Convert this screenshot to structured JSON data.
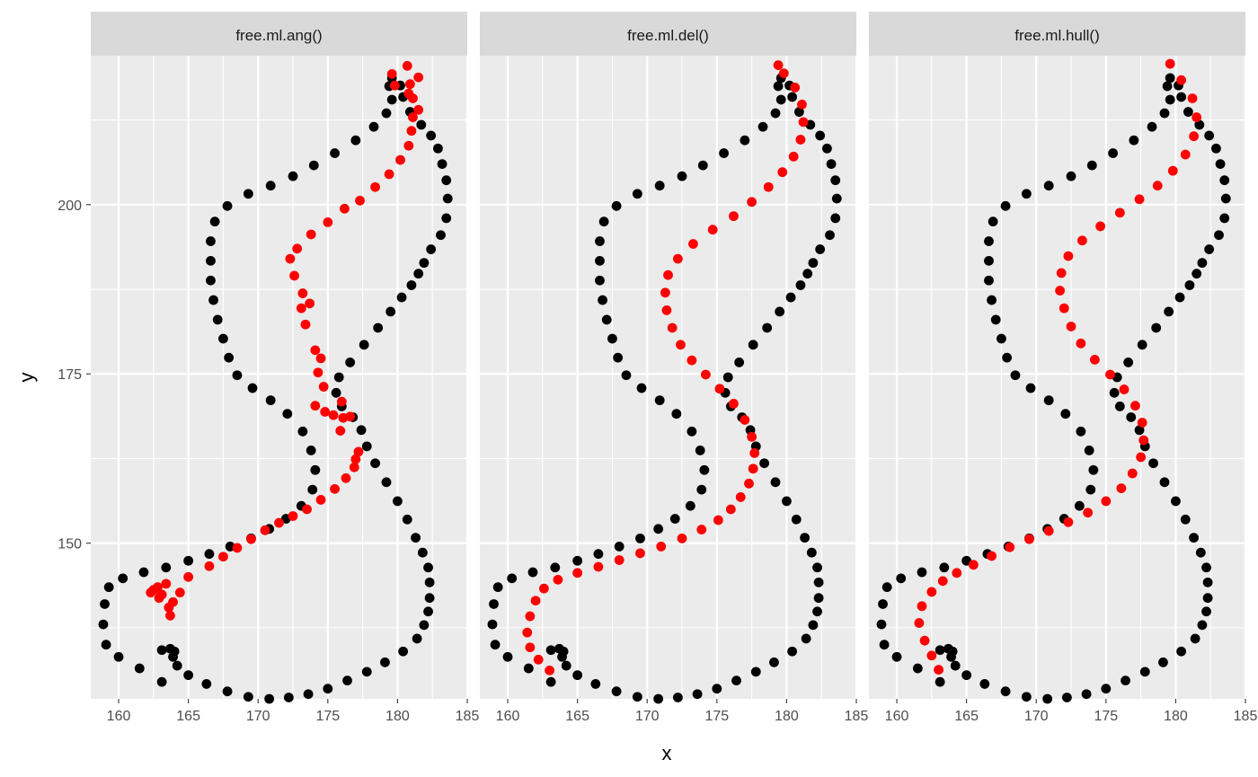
{
  "colors": {
    "panel_background": "#EBEBEB",
    "strip_background": "#D9D9D9",
    "grid": "#FFFFFF",
    "outline_points": "#000000",
    "midline_points": "#FF0000",
    "tick_text": "#4D4D4D"
  },
  "chart_data": [
    {
      "type": "scatter",
      "facet": "free.ml.ang()",
      "x_axis_label": "x",
      "y_axis_label": "y",
      "xlim": [
        158,
        185
      ],
      "ylim": [
        222,
        127
      ],
      "y_reversed": true,
      "x_ticks": [
        160,
        165,
        170,
        175,
        180,
        185
      ],
      "y_ticks": [
        150,
        175,
        200
      ],
      "grid": true,
      "series": [
        {
          "color": "#000000",
          "x": [
            163.1,
            161.5,
            160.0,
            159.1,
            158.9,
            159.0,
            159.3,
            160.3,
            161.8,
            163.4,
            165.0,
            166.5,
            168.0,
            169.5,
            170.8,
            172.0,
            173.1,
            173.9,
            174.1,
            173.8,
            173.2,
            172.1,
            170.9,
            169.6,
            168.5,
            167.9,
            167.5,
            167.1,
            166.8,
            166.6,
            166.6,
            166.6,
            166.9,
            167.8,
            169.3,
            170.9,
            172.5,
            174.0,
            175.5,
            177.0,
            178.3,
            179.2,
            179.6,
            179.4,
            179.6,
            180.2,
            180.4,
            180.9,
            181.7,
            182.4,
            182.9,
            183.2,
            183.5,
            183.6,
            183.5,
            183.1,
            182.4,
            181.9,
            181.5,
            181.0,
            180.3,
            179.5,
            178.6,
            177.6,
            176.6,
            175.8,
            175.6,
            176.0,
            176.8,
            177.4,
            177.8,
            178.4,
            179.2,
            180.0,
            180.7,
            181.3,
            181.8,
            182.2,
            182.3,
            182.3,
            182.2,
            181.9,
            181.4,
            180.4,
            179.1,
            177.8,
            176.4,
            175.0,
            173.6,
            172.2,
            170.8,
            169.3,
            167.8,
            166.3,
            165.0,
            164.2,
            163.9,
            164.0,
            163.7,
            163.1
          ],
          "y": [
            129.5,
            131.5,
            133.2,
            135.0,
            138.0,
            141.0,
            143.5,
            144.8,
            145.7,
            146.4,
            147.4,
            148.4,
            149.5,
            150.7,
            152.1,
            153.6,
            155.5,
            157.9,
            160.8,
            163.7,
            166.5,
            169.1,
            171.1,
            172.9,
            174.8,
            177.4,
            180.2,
            183.0,
            185.9,
            188.8,
            191.7,
            194.6,
            197.5,
            199.8,
            201.6,
            202.8,
            204.2,
            205.8,
            207.6,
            209.5,
            211.5,
            213.5,
            215.5,
            217.5,
            218.7,
            217.6,
            215.9,
            213.7,
            211.8,
            210.2,
            208.3,
            206.0,
            203.6,
            200.9,
            198.0,
            195.5,
            193.4,
            191.4,
            189.8,
            188.1,
            186.3,
            184.2,
            181.8,
            179.3,
            176.7,
            174.5,
            172.2,
            170.2,
            168.6,
            166.7,
            164.3,
            161.8,
            159.0,
            156.2,
            153.5,
            150.8,
            148.6,
            146.4,
            144.2,
            141.9,
            139.9,
            137.9,
            135.9,
            134.0,
            132.4,
            131.0,
            129.7,
            128.5,
            127.7,
            127.2,
            127.0,
            127.3,
            128.1,
            129.2,
            130.5,
            131.9,
            133.2,
            134.0,
            134.4,
            134.2
          ]
        },
        {
          "color": "#FF0000",
          "x": [
            163.7,
            163.6,
            162.9,
            162.5,
            163.1,
            163.9,
            164.4,
            162.3,
            162.8,
            163.4,
            165.0,
            166.5,
            167.5,
            168.5,
            169.5,
            170.5,
            171.5,
            172.5,
            173.5,
            174.5,
            175.5,
            176.3,
            176.9,
            177.0,
            177.2,
            175.9,
            176.1,
            175.4,
            174.8,
            174.1,
            176.6,
            176.0,
            174.7,
            174.3,
            174.5,
            174.1,
            173.4,
            173.1,
            173.7,
            173.2,
            172.6,
            172.3,
            172.8,
            173.8,
            175.0,
            176.2,
            177.3,
            178.4,
            179.4,
            180.2,
            180.8,
            181.0,
            181.1,
            181.5,
            181.1,
            180.8,
            180.9,
            181.5,
            179.8,
            179.6,
            180.7
          ],
          "y": [
            139.3,
            140.5,
            141.9,
            143.1,
            142.4,
            141.3,
            142.7,
            142.7,
            143.5,
            144.0,
            145.0,
            146.6,
            148.0,
            149.3,
            150.6,
            151.9,
            153.0,
            154.0,
            155.0,
            156.4,
            158.0,
            159.6,
            161.2,
            162.4,
            163.5,
            166.6,
            168.5,
            168.9,
            169.4,
            170.3,
            168.7,
            170.9,
            173.1,
            175.2,
            177.3,
            178.5,
            182.3,
            184.7,
            185.4,
            186.9,
            189.5,
            192.0,
            193.5,
            195.6,
            197.4,
            199.4,
            200.6,
            202.6,
            204.5,
            206.6,
            208.7,
            210.9,
            212.9,
            214.0,
            215.7,
            216.4,
            217.8,
            218.8,
            217.6,
            219.3,
            220.5
          ]
        }
      ]
    },
    {
      "type": "scatter",
      "facet": "free.ml.del()",
      "x_axis_label": "x",
      "y_axis_label": "y",
      "xlim": [
        158,
        185
      ],
      "ylim": [
        222,
        127
      ],
      "y_reversed": true,
      "x_ticks": [
        160,
        165,
        170,
        175,
        180,
        185
      ],
      "y_ticks": [
        150,
        175,
        200
      ],
      "grid": true,
      "series": [
        {
          "color": "#000000",
          "x": [
            163.1,
            161.5,
            160.0,
            159.1,
            158.9,
            159.0,
            159.3,
            160.3,
            161.8,
            163.4,
            165.0,
            166.5,
            168.0,
            169.5,
            170.8,
            172.0,
            173.1,
            173.9,
            174.1,
            173.8,
            173.2,
            172.1,
            170.9,
            169.6,
            168.5,
            167.9,
            167.5,
            167.1,
            166.8,
            166.6,
            166.6,
            166.6,
            166.9,
            167.8,
            169.3,
            170.9,
            172.5,
            174.0,
            175.5,
            177.0,
            178.3,
            179.2,
            179.6,
            179.4,
            179.6,
            180.2,
            180.4,
            180.9,
            181.7,
            182.4,
            182.9,
            183.2,
            183.5,
            183.6,
            183.5,
            183.1,
            182.4,
            181.9,
            181.5,
            181.0,
            180.3,
            179.5,
            178.6,
            177.6,
            176.6,
            175.8,
            175.6,
            176.0,
            176.8,
            177.4,
            177.8,
            178.4,
            179.2,
            180.0,
            180.7,
            181.3,
            181.8,
            182.2,
            182.3,
            182.3,
            182.2,
            181.9,
            181.4,
            180.4,
            179.1,
            177.8,
            176.4,
            175.0,
            173.6,
            172.2,
            170.8,
            169.3,
            167.8,
            166.3,
            165.0,
            164.2,
            163.9,
            164.0,
            163.7,
            163.1
          ],
          "y": [
            129.5,
            131.5,
            133.2,
            135.0,
            138.0,
            141.0,
            143.5,
            144.8,
            145.7,
            146.4,
            147.4,
            148.4,
            149.5,
            150.7,
            152.1,
            153.6,
            155.5,
            157.9,
            160.8,
            163.7,
            166.5,
            169.1,
            171.1,
            172.9,
            174.8,
            177.4,
            180.2,
            183.0,
            185.9,
            188.8,
            191.7,
            194.6,
            197.5,
            199.8,
            201.6,
            202.8,
            204.2,
            205.8,
            207.6,
            209.5,
            211.5,
            213.5,
            215.5,
            217.5,
            218.7,
            217.6,
            215.9,
            213.7,
            211.8,
            210.2,
            208.3,
            206.0,
            203.6,
            200.9,
            198.0,
            195.5,
            193.4,
            191.4,
            189.8,
            188.1,
            186.3,
            184.2,
            181.8,
            179.3,
            176.7,
            174.5,
            172.2,
            170.2,
            168.6,
            166.7,
            164.3,
            161.8,
            159.0,
            156.2,
            153.5,
            150.8,
            148.6,
            146.4,
            144.2,
            141.9,
            139.9,
            137.9,
            135.9,
            134.0,
            132.4,
            131.0,
            129.7,
            128.5,
            127.7,
            127.2,
            127.0,
            127.3,
            128.1,
            129.2,
            130.5,
            131.9,
            133.2,
            134.0,
            134.4,
            134.2
          ]
        },
        {
          "color": "#FF0000",
          "x": [
            163.0,
            162.2,
            161.6,
            161.4,
            161.6,
            162.0,
            162.6,
            163.6,
            165.0,
            166.5,
            168.0,
            169.5,
            171.0,
            172.5,
            173.9,
            175.1,
            176.0,
            176.7,
            177.3,
            177.6,
            177.7,
            177.5,
            177.0,
            176.2,
            175.2,
            174.2,
            173.2,
            172.4,
            171.8,
            171.4,
            171.3,
            171.5,
            172.2,
            173.3,
            174.7,
            176.2,
            177.5,
            178.7,
            179.7,
            180.5,
            181.0,
            181.2,
            181.1,
            180.6,
            179.8,
            179.4
          ],
          "y": [
            131.2,
            132.8,
            134.6,
            136.8,
            139.2,
            141.5,
            143.3,
            144.6,
            145.6,
            146.5,
            147.5,
            148.5,
            149.5,
            150.7,
            152.0,
            153.4,
            155.0,
            156.8,
            158.8,
            161.0,
            163.3,
            165.7,
            168.2,
            170.6,
            172.8,
            174.9,
            177.0,
            179.3,
            181.8,
            184.4,
            187.0,
            189.6,
            192.0,
            194.2,
            196.3,
            198.3,
            200.4,
            202.6,
            204.8,
            207.1,
            209.6,
            212.2,
            214.8,
            217.3,
            219.4,
            220.6
          ]
        }
      ]
    },
    {
      "type": "scatter",
      "facet": "free.ml.hull()",
      "x_axis_label": "x",
      "y_axis_label": "y",
      "xlim": [
        158,
        185
      ],
      "ylim": [
        222,
        127
      ],
      "y_reversed": true,
      "x_ticks": [
        160,
        165,
        170,
        175,
        180,
        185
      ],
      "y_ticks": [
        150,
        175,
        200
      ],
      "grid": true,
      "series": [
        {
          "color": "#000000",
          "x": [
            163.1,
            161.5,
            160.0,
            159.1,
            158.9,
            159.0,
            159.3,
            160.3,
            161.8,
            163.4,
            165.0,
            166.5,
            168.0,
            169.5,
            170.8,
            172.0,
            173.1,
            173.9,
            174.1,
            173.8,
            173.2,
            172.1,
            170.9,
            169.6,
            168.5,
            167.9,
            167.5,
            167.1,
            166.8,
            166.6,
            166.6,
            166.6,
            166.9,
            167.8,
            169.3,
            170.9,
            172.5,
            174.0,
            175.5,
            177.0,
            178.3,
            179.2,
            179.6,
            179.4,
            179.6,
            180.2,
            180.4,
            180.9,
            181.7,
            182.4,
            182.9,
            183.2,
            183.5,
            183.6,
            183.5,
            183.1,
            182.4,
            181.9,
            181.5,
            181.0,
            180.3,
            179.5,
            178.6,
            177.6,
            176.6,
            175.8,
            175.6,
            176.0,
            176.8,
            177.4,
            177.8,
            178.4,
            179.2,
            180.0,
            180.7,
            181.3,
            181.8,
            182.2,
            182.3,
            182.3,
            182.2,
            181.9,
            181.4,
            180.4,
            179.1,
            177.8,
            176.4,
            175.0,
            173.6,
            172.2,
            170.8,
            169.3,
            167.8,
            166.3,
            165.0,
            164.2,
            163.9,
            164.0,
            163.7,
            163.1
          ],
          "y": [
            129.5,
            131.5,
            133.2,
            135.0,
            138.0,
            141.0,
            143.5,
            144.8,
            145.7,
            146.4,
            147.4,
            148.4,
            149.5,
            150.7,
            152.1,
            153.6,
            155.5,
            157.9,
            160.8,
            163.7,
            166.5,
            169.1,
            171.1,
            172.9,
            174.8,
            177.4,
            180.2,
            183.0,
            185.9,
            188.8,
            191.7,
            194.6,
            197.5,
            199.8,
            201.6,
            202.8,
            204.2,
            205.8,
            207.6,
            209.5,
            211.5,
            213.5,
            215.5,
            217.5,
            218.7,
            217.6,
            215.9,
            213.7,
            211.8,
            210.2,
            208.3,
            206.0,
            203.6,
            200.9,
            198.0,
            195.5,
            193.4,
            191.4,
            189.8,
            188.1,
            186.3,
            184.2,
            181.8,
            179.3,
            176.7,
            174.5,
            172.2,
            170.2,
            168.6,
            166.7,
            164.3,
            161.8,
            159.0,
            156.2,
            153.5,
            150.8,
            148.6,
            146.4,
            144.2,
            141.9,
            139.9,
            137.9,
            135.9,
            134.0,
            132.4,
            131.0,
            129.7,
            128.5,
            127.7,
            127.2,
            127.0,
            127.3,
            128.1,
            129.2,
            130.5,
            131.9,
            133.2,
            134.0,
            134.4,
            134.2
          ]
        },
        {
          "color": "#FF0000",
          "x": [
            163.0,
            162.5,
            162.0,
            161.6,
            161.8,
            162.5,
            163.3,
            164.3,
            165.5,
            166.8,
            168.1,
            169.5,
            170.9,
            172.3,
            173.7,
            175.0,
            176.1,
            176.9,
            177.5,
            177.7,
            177.6,
            177.1,
            176.3,
            175.3,
            174.2,
            173.2,
            172.5,
            172.0,
            171.7,
            171.8,
            172.3,
            173.3,
            174.6,
            176.0,
            177.4,
            178.7,
            179.8,
            180.7,
            181.3,
            181.5,
            181.2,
            180.4,
            179.6
          ],
          "y": [
            131.3,
            133.4,
            135.6,
            138.2,
            140.7,
            142.8,
            144.4,
            145.6,
            146.8,
            148.1,
            149.4,
            150.6,
            151.8,
            153.1,
            154.5,
            156.2,
            158.1,
            160.3,
            162.7,
            165.2,
            167.8,
            170.3,
            172.7,
            174.9,
            177.1,
            179.5,
            182.0,
            184.7,
            187.3,
            189.9,
            192.4,
            194.7,
            196.8,
            198.8,
            200.8,
            202.8,
            205.0,
            207.4,
            210.1,
            212.9,
            215.7,
            218.4,
            220.8
          ]
        }
      ]
    }
  ]
}
